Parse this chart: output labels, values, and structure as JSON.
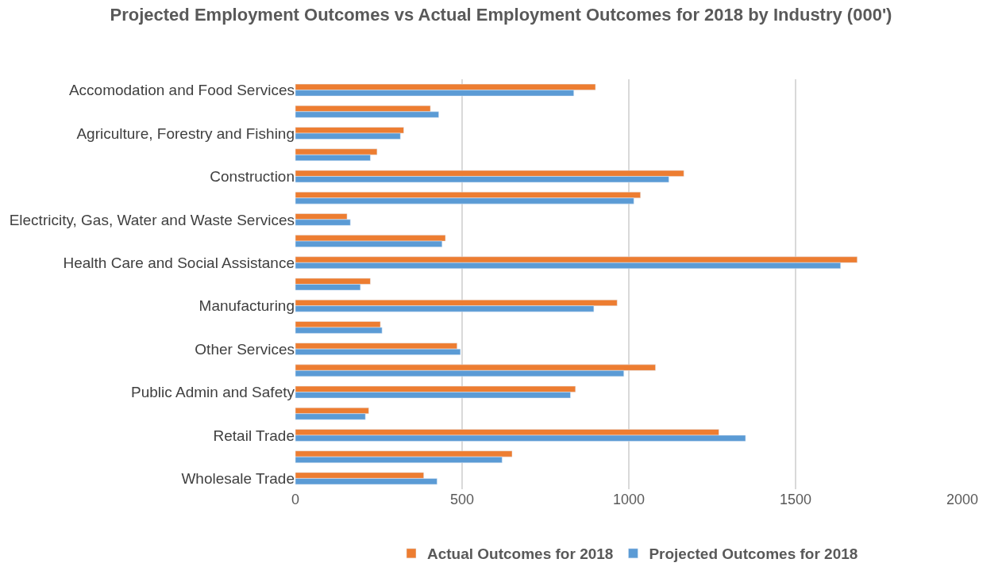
{
  "chart_data": {
    "type": "bar",
    "orientation": "horizontal",
    "title": "Projected Employment Outcomes vs Actual Employment Outcomes for 2018 by Industry (000')",
    "categories": [
      "Accomodation and Food Services",
      null,
      "Agriculture, Forestry and Fishing",
      null,
      "Construction",
      null,
      "Electricity, Gas, Water and Waste Services",
      null,
      "Health Care and Social Assistance",
      null,
      "Manufacturing",
      null,
      "Other Services",
      null,
      "Public Admin and Safety",
      null,
      "Retail Trade",
      null,
      "Wholesale Trade"
    ],
    "series": [
      {
        "name": "Actual Outcomes for 2018",
        "color": "#ed7d31",
        "values": [
          900,
          405,
          325,
          245,
          1165,
          1035,
          155,
          450,
          1685,
          225,
          965,
          255,
          485,
          1080,
          840,
          220,
          1270,
          650,
          385
        ]
      },
      {
        "name": "Projected Outcomes for 2018",
        "color": "#5b9bd5",
        "values": [
          835,
          430,
          315,
          225,
          1120,
          1015,
          165,
          440,
          1635,
          195,
          895,
          260,
          495,
          985,
          825,
          210,
          1350,
          620,
          425
        ]
      }
    ],
    "xlim": [
      0,
      2000
    ],
    "xticks": [
      0,
      500,
      1000,
      1500,
      2000
    ],
    "grid": "x",
    "legend": "bottom"
  }
}
